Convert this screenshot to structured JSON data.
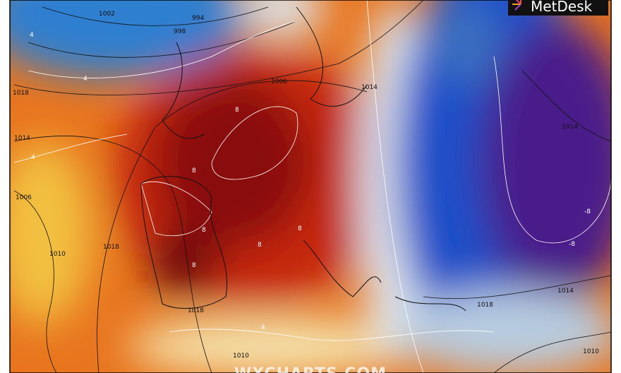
{
  "logo": "MetDesk",
  "watermark": "WXCHARTS.COM",
  "isobar_labels": [
    "1002",
    "994",
    "998",
    "1006",
    "1014",
    "1018",
    "1014",
    "1006",
    "1010",
    "1018",
    "1018",
    "1014",
    "1018",
    "1014",
    "1010",
    "1010"
  ],
  "temperature_labels": [
    "4",
    "4",
    "8",
    "4",
    "8",
    "8",
    "8",
    "8",
    "8",
    "4",
    "-8",
    "-8"
  ]
}
